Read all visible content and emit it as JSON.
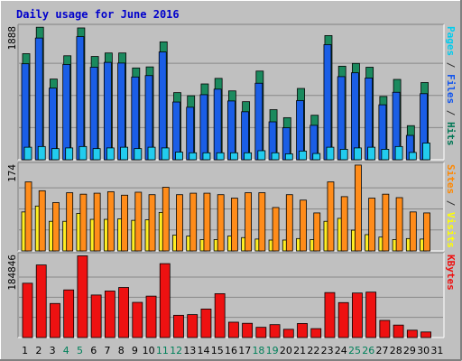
{
  "chart_data": {
    "type": "bar",
    "title": "Daily usage for June 2016",
    "categories": [
      "1",
      "2",
      "3",
      "4",
      "5",
      "6",
      "7",
      "8",
      "9",
      "10",
      "11",
      "12",
      "13",
      "14",
      "15",
      "16",
      "17",
      "18",
      "19",
      "20",
      "21",
      "22",
      "23",
      "24",
      "25",
      "26",
      "27",
      "28",
      "29",
      "30",
      "31"
    ],
    "weekend_days": [
      "4",
      "5",
      "11",
      "12",
      "18",
      "19",
      "25",
      "26"
    ],
    "panels": [
      {
        "id": "top",
        "ymax": 1888,
        "ymax_label": "1888",
        "side_labels": [
          {
            "text": "Pages",
            "color": "#00ccee"
          },
          {
            "text": " / ",
            "color": "#333333"
          },
          {
            "text": "Files",
            "color": "#1155ee"
          },
          {
            "text": " / ",
            "color": "#333333"
          },
          {
            "text": "Hits",
            "color": "#007755"
          }
        ],
        "series": [
          {
            "name": "Hits",
            "color": "#1b8a5e",
            "values": [
              1460,
              1840,
              1095,
              1430,
              1830,
              1420,
              1470,
              1470,
              1255,
              1270,
              1630,
              900,
              855,
              1025,
              1105,
              925,
              770,
              1210,
              655,
              540,
              960,
              575,
              1720,
              1280,
              1320,
              1265,
              845,
              1090,
              425,
              1045,
              0
            ]
          },
          {
            "name": "Files",
            "color": "#1a5ee6",
            "values": [
              1380,
              1750,
              1030,
              1370,
              1770,
              1330,
              1400,
              1390,
              1190,
              1210,
              1550,
              830,
              755,
              935,
              1015,
              845,
              690,
              1100,
              545,
              460,
              850,
              495,
              1655,
              1195,
              1250,
              1175,
              790,
              970,
              350,
              950,
              0
            ]
          },
          {
            "name": "Pages",
            "color": "#22ccee",
            "values": [
              180,
              190,
              160,
              170,
              190,
              160,
              170,
              180,
              160,
              180,
              170,
              110,
              100,
              100,
              100,
              100,
              100,
              130,
              100,
              85,
              125,
              90,
              180,
              150,
              170,
              180,
              150,
              190,
              105,
              240,
              0
            ]
          }
        ]
      },
      {
        "id": "middle",
        "ymax": 174,
        "ymax_label": "174",
        "side_labels": [
          {
            "text": "Sites",
            "color": "#ff8800"
          },
          {
            "text": " / ",
            "color": "#333333"
          },
          {
            "text": "Visits",
            "color": "#ffff00"
          }
        ],
        "series": [
          {
            "name": "Visits",
            "color": "#ffee22",
            "values": [
              79,
              91,
              60,
              60,
              76,
              64,
              64,
              65,
              62,
              63,
              78,
              32,
              30,
              23,
              23,
              30,
              27,
              24,
              22,
              22,
              25,
              23,
              60,
              66,
              42,
              33,
              28,
              23,
              25,
              24,
              0
            ]
          },
          {
            "name": "Sites",
            "color": "#ff8c1a",
            "values": [
              140,
              122,
              98,
              118,
              115,
              117,
              120,
              113,
              119,
              114,
              129,
              114,
              117,
              117,
              114,
              107,
              118,
              118,
              88,
              114,
              103,
              77,
              140,
              110,
              174,
              107,
              115,
              108,
              79,
              77,
              0
            ]
          }
        ]
      },
      {
        "id": "bottom",
        "ymax": 184846,
        "ymax_label": "184846",
        "side_labels": [
          {
            "text": "KBytes",
            "color": "#ee1111"
          }
        ],
        "series": [
          {
            "name": "KBytes",
            "color": "#ee1111",
            "values": [
              122000,
              163000,
              76500,
              107000,
              183500,
              95500,
              104500,
              112500,
              79000,
              93000,
              166000,
              50000,
              51500,
              64000,
              98500,
              34500,
              32000,
              23000,
              29000,
              18500,
              31500,
              20000,
              101000,
              78500,
              100000,
              102000,
              38500,
              28000,
              16500,
              12500,
              0
            ]
          }
        ]
      }
    ]
  }
}
